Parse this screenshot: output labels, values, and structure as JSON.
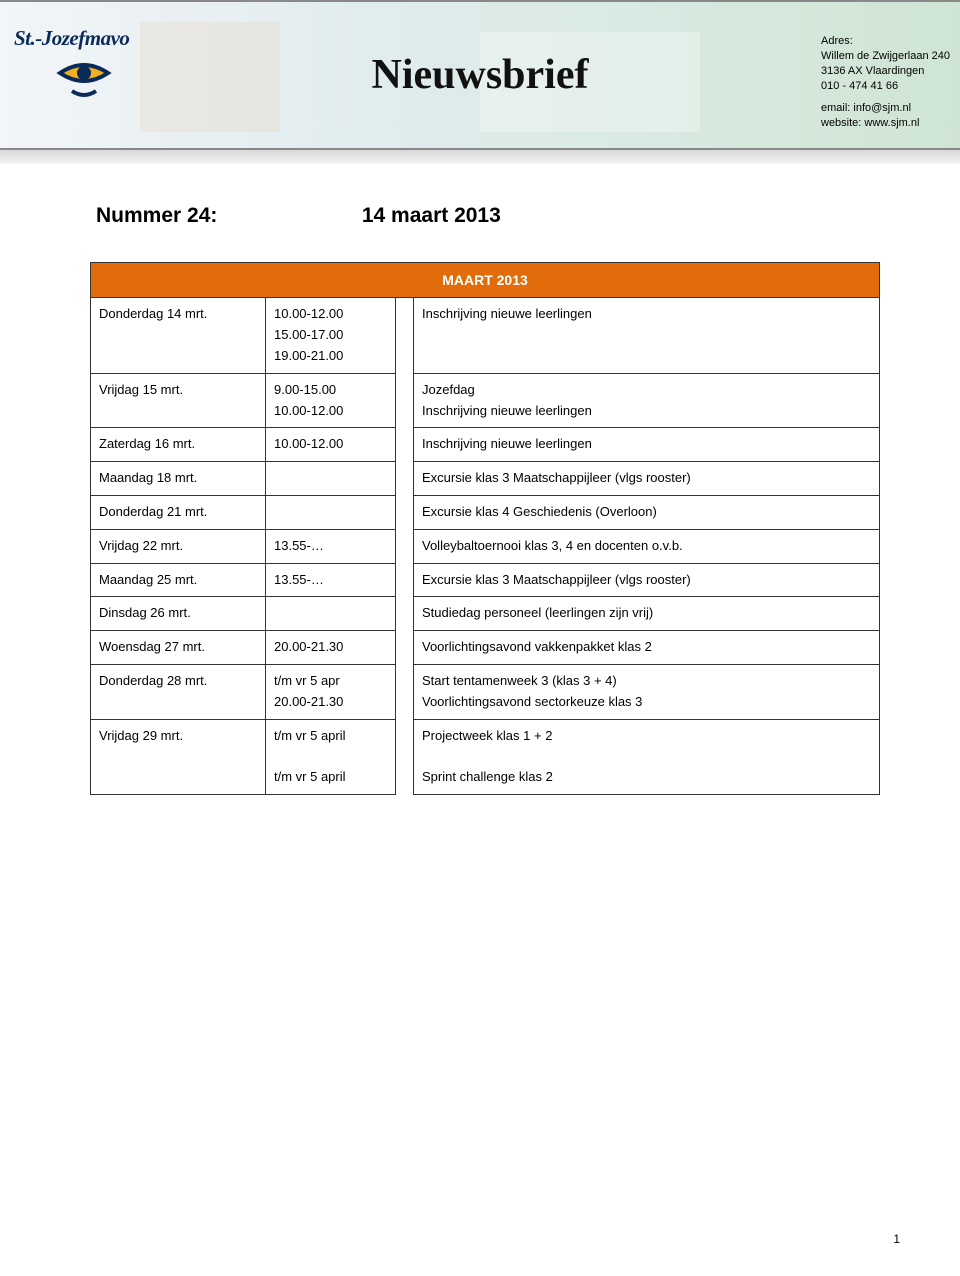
{
  "banner": {
    "logo_text": "St.-Jozefmavo",
    "title": "Nieuwsbrief",
    "address": {
      "label": "Adres:",
      "line1": "Willem de Zwijgerlaan 240",
      "line2": "3136 AX Vlaardingen",
      "phone": "010 - 474 41 66",
      "email_label": "email:",
      "email": "info@sjm.nl",
      "website_label": "website:",
      "website": "www.sjm.nl"
    },
    "colors": {
      "top_border": "#888888",
      "gradient_start": "#e8eef2",
      "gradient_end": "#a8d0b0"
    }
  },
  "issue": {
    "label": "Nummer 24:",
    "date": "14 maart 2013"
  },
  "calendar": {
    "month_header": "MAART 2013",
    "header_bg": "#e36c0a",
    "header_color": "#ffffff",
    "rows": [
      {
        "day": "Donderdag 14 mrt.",
        "time": "10.00-12.00\n15.00-17.00\n19.00-21.00",
        "desc": "Inschrijving nieuwe leerlingen"
      },
      {
        "day": "Vrijdag 15 mrt.",
        "time": " 9.00-15.00\n10.00-12.00",
        "desc": "Jozefdag\nInschrijving nieuwe leerlingen"
      },
      {
        "day": "Zaterdag 16 mrt.",
        "time": "10.00-12.00",
        "desc": "Inschrijving nieuwe leerlingen"
      },
      {
        "day": "Maandag 18 mrt.",
        "time": "",
        "desc": "Excursie klas 3 Maatschappijleer (vlgs rooster)"
      },
      {
        "day": "Donderdag 21 mrt.",
        "time": "",
        "desc": "Excursie klas 4 Geschiedenis (Overloon)"
      },
      {
        "day": "Vrijdag 22 mrt.",
        "time": "13.55-…",
        "desc": "Volleybaltoernooi klas 3, 4 en docenten o.v.b."
      },
      {
        "day": "Maandag 25 mrt.",
        "time": "13.55-…",
        "desc": "Excursie klas 3 Maatschappijleer (vlgs rooster)"
      },
      {
        "day": "Dinsdag 26 mrt.",
        "time": "",
        "desc": "Studiedag personeel (leerlingen zijn vrij)"
      },
      {
        "day": "Woensdag 27 mrt.",
        "time": "20.00-21.30",
        "desc": "Voorlichtingsavond vakkenpakket klas 2"
      },
      {
        "day": "Donderdag 28 mrt.",
        "time": "t/m vr 5 apr\n20.00-21.30",
        "desc": "Start tentamenweek 3 (klas 3 + 4)\nVoorlichtingsavond sectorkeuze klas 3"
      },
      {
        "day": "Vrijdag 29 mrt.",
        "time": "t/m vr 5 april\n\nt/m vr 5 april",
        "desc": "Projectweek klas 1 + 2\n\nSprint challenge klas  2"
      }
    ]
  },
  "page_number": "1"
}
